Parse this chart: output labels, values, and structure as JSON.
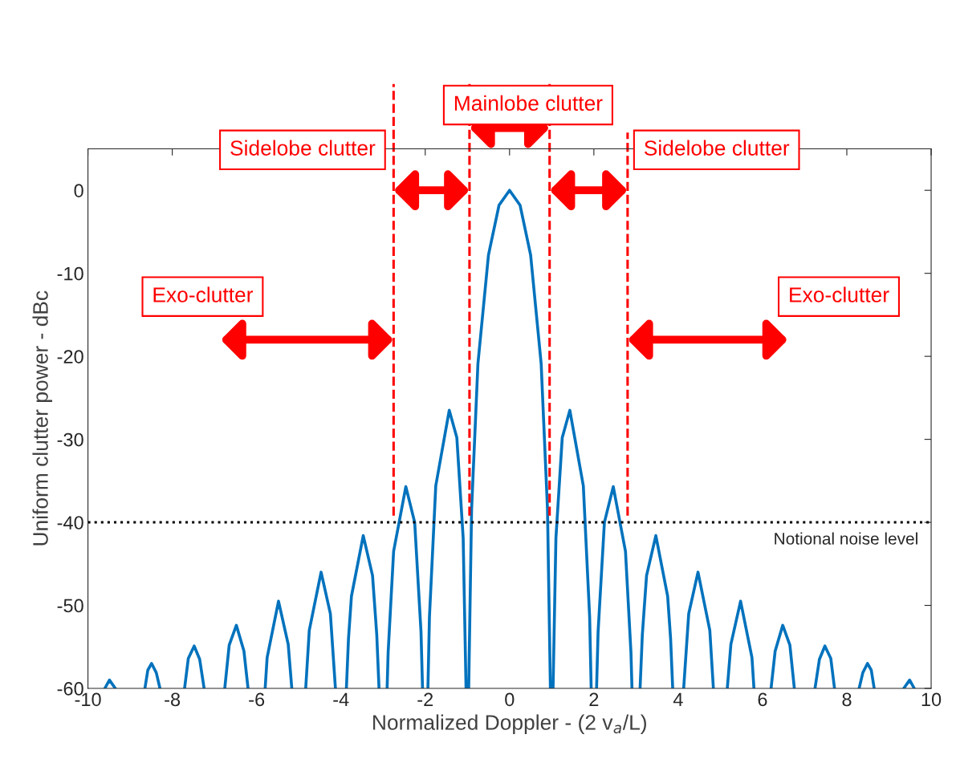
{
  "chart_data": {
    "type": "line",
    "xlabel": "Normalized Doppler - (2 v$_{a}$/L)",
    "ylabel": "Uniform clutter power - dBc",
    "xlim": [
      -10,
      10
    ],
    "xticks": [
      -10,
      -8,
      -6,
      -4,
      -2,
      0,
      2,
      4,
      6,
      8,
      10
    ],
    "ylim": [
      -60,
      5
    ],
    "yticks": [
      -60,
      -50,
      -40,
      -30,
      -20,
      -10,
      0
    ],
    "grid": false,
    "marker": "none",
    "line_style": "solid",
    "series": [
      {
        "color": "#0072bd",
        "x": [
          -9.6,
          -9.49,
          -9.351,
          -9,
          -8.649,
          -8.58,
          -8.49,
          -8.38,
          -8.292,
          -8,
          -7.708,
          -7.62,
          -7.48,
          -7.35,
          -7.245,
          -7,
          -6.755,
          -6.65,
          -6.48,
          -6.3,
          -6.203,
          -6,
          -5.797,
          -5.75,
          -5.48,
          -5.25,
          -5.165,
          -5,
          -4.835,
          -4.75,
          -4.47,
          -4.25,
          -4.13,
          -4,
          -3.87,
          -3.82,
          -3.75,
          -3.47,
          -3.25,
          -3.15,
          -3.096,
          -3,
          -2.904,
          -2.88,
          -2.75,
          -2.46,
          -2.25,
          -2.1,
          -2.064,
          -2,
          -1.936,
          -1.9,
          -1.75,
          -1.43,
          -1.25,
          -1.1,
          -1.032,
          -1,
          -0.969,
          -0.9,
          -0.75,
          -0.5,
          -0.25,
          0,
          0.25,
          0.5,
          0.75,
          0.9,
          0.969,
          1,
          1.032,
          1.1,
          1.25,
          1.43,
          1.75,
          1.9,
          1.936,
          2,
          2.064,
          2.1,
          2.25,
          2.46,
          2.75,
          2.88,
          2.904,
          3,
          3.096,
          3.15,
          3.25,
          3.47,
          3.75,
          3.82,
          3.87,
          4,
          4.13,
          4.25,
          4.47,
          4.75,
          4.835,
          5,
          5.165,
          5.25,
          5.48,
          5.75,
          5.797,
          6,
          6.203,
          6.3,
          6.48,
          6.65,
          6.755,
          7,
          7.245,
          7.35,
          7.48,
          7.62,
          7.708,
          8,
          8.292,
          8.38,
          8.49,
          8.58,
          8.649,
          9,
          9.351,
          9.49,
          9.6
        ],
        "values": [
          -60,
          -59.0,
          -60,
          null,
          -60,
          -57.8,
          -57.0,
          -58.1,
          -60,
          null,
          -60,
          -56.4,
          -54.9,
          -56.5,
          -60,
          null,
          -60,
          -54.8,
          -52.4,
          -55.5,
          -60,
          null,
          -60,
          -56.3,
          -49.5,
          -54.7,
          -60,
          null,
          -60,
          -53.0,
          -46.0,
          -51.0,
          -60,
          null,
          -60,
          -54.0,
          -48.9,
          -41.6,
          -46.4,
          -53.5,
          -60,
          null,
          -60,
          -55.7,
          -43.5,
          -35.7,
          -40.0,
          -53.2,
          -60,
          null,
          -60,
          -51.4,
          -35.6,
          -26.5,
          -29.8,
          -41.9,
          -60,
          null,
          -60,
          -38.4,
          -20.9,
          -7.8,
          -1.8,
          0,
          -1.8,
          -7.8,
          -20.9,
          -38.4,
          -60,
          null,
          -60,
          -41.9,
          -29.8,
          -26.5,
          -35.6,
          -51.4,
          -60,
          null,
          -60,
          -53.2,
          -40.0,
          -35.7,
          -43.5,
          -55.7,
          -60,
          null,
          -60,
          -53.5,
          -46.4,
          -41.6,
          -48.9,
          -54.0,
          -60,
          null,
          -60,
          -51.0,
          -46.0,
          -53.0,
          -60,
          null,
          -60,
          -54.7,
          -49.5,
          -56.3,
          -60,
          null,
          -60,
          -55.5,
          -52.4,
          -54.8,
          -60,
          null,
          -60,
          -56.5,
          -54.9,
          -56.4,
          -60,
          null,
          -60,
          -58.1,
          -57.0,
          -57.8,
          -60,
          null,
          -60,
          -59.0,
          -60
        ]
      }
    ],
    "ref_lines": [
      {
        "axis": "y",
        "value": -40,
        "label": "Notional noise level",
        "color": "#000000",
        "line_style": "dotted"
      },
      {
        "axis": "x",
        "value": -2.75,
        "color": "#ff0000",
        "line_style": "dashed"
      },
      {
        "axis": "x",
        "value": -0.95,
        "color": "#ff0000",
        "line_style": "dashed"
      },
      {
        "axis": "x",
        "value": 0.95,
        "color": "#ff0000",
        "line_style": "dashed"
      },
      {
        "axis": "x",
        "value": 2.8,
        "color": "#ff0000",
        "line_style": "dashed"
      }
    ],
    "annotations": [
      "Mainlobe clutter",
      "Sidelobe clutter",
      "Sidelobe clutter",
      "Exo-clutter",
      "Exo-clutter"
    ]
  }
}
